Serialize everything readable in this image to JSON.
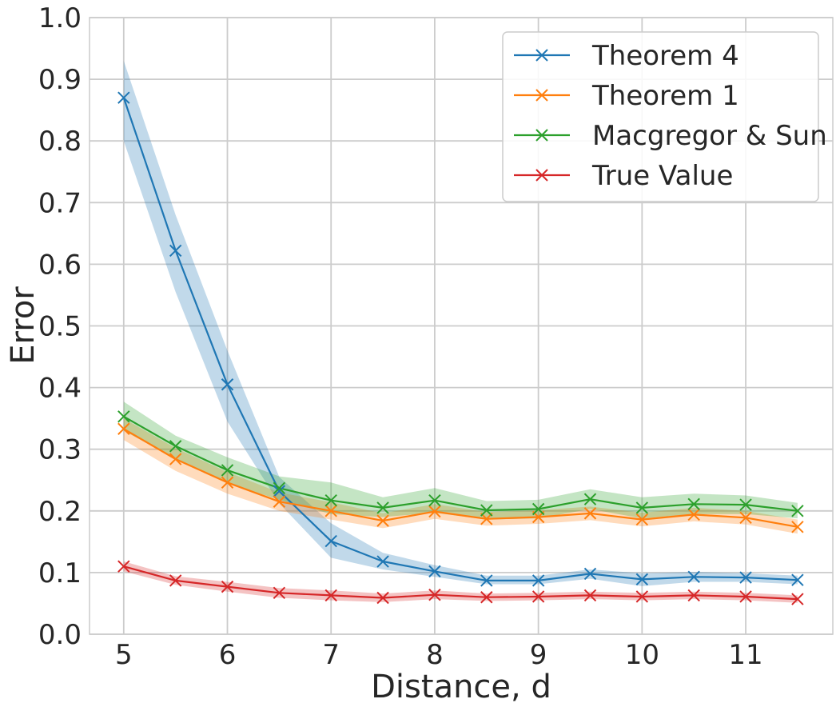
{
  "chart_data": {
    "type": "line",
    "title": "",
    "xlabel": "Distance, d",
    "ylabel": "Error",
    "xlim": [
      4.67,
      11.84
    ],
    "ylim": [
      0.0,
      1.0
    ],
    "xticks": [
      5,
      6,
      7,
      8,
      9,
      10,
      11
    ],
    "xtick_labels": [
      "5",
      "6",
      "7",
      "8",
      "9",
      "10",
      "11"
    ],
    "yticks": [
      0.0,
      0.1,
      0.2,
      0.3,
      0.4,
      0.5,
      0.6,
      0.7,
      0.8,
      0.9,
      1.0
    ],
    "ytick_labels": [
      "0.0",
      "0.1",
      "0.2",
      "0.3",
      "0.4",
      "0.5",
      "0.6",
      "0.7",
      "0.8",
      "0.9",
      "1.0"
    ],
    "grid": true,
    "legend_position": "top-right",
    "x": [
      5,
      5.5,
      6,
      6.5,
      7,
      7.5,
      8,
      8.5,
      9,
      9.5,
      10,
      10.5,
      11,
      11.5
    ],
    "series": [
      {
        "name": "Theorem 4",
        "color": "#1f77b4",
        "marker": "x",
        "values": [
          0.87,
          0.622,
          0.405,
          0.232,
          0.151,
          0.118,
          0.102,
          0.087,
          0.087,
          0.098,
          0.089,
          0.093,
          0.092,
          0.088
        ],
        "lower": [
          0.8,
          0.555,
          0.345,
          0.212,
          0.124,
          0.105,
          0.093,
          0.081,
          0.081,
          0.09,
          0.078,
          0.085,
          0.085,
          0.081
        ],
        "upper": [
          0.93,
          0.68,
          0.46,
          0.255,
          0.18,
          0.132,
          0.112,
          0.095,
          0.095,
          0.105,
          0.099,
          0.101,
          0.099,
          0.095
        ]
      },
      {
        "name": "Theorem 1",
        "color": "#ff7f0e",
        "marker": "x",
        "values": [
          0.333,
          0.284,
          0.246,
          0.215,
          0.2,
          0.184,
          0.199,
          0.187,
          0.19,
          0.196,
          0.186,
          0.194,
          0.189,
          0.174
        ],
        "lower": [
          0.315,
          0.265,
          0.228,
          0.2,
          0.186,
          0.172,
          0.187,
          0.176,
          0.179,
          0.185,
          0.175,
          0.183,
          0.178,
          0.163
        ],
        "upper": [
          0.35,
          0.302,
          0.263,
          0.23,
          0.214,
          0.196,
          0.211,
          0.198,
          0.201,
          0.207,
          0.197,
          0.205,
          0.2,
          0.186
        ]
      },
      {
        "name": "Macgregor & Sun",
        "color": "#2ca02c",
        "marker": "x",
        "values": [
          0.353,
          0.305,
          0.266,
          0.237,
          0.217,
          0.205,
          0.217,
          0.201,
          0.203,
          0.219,
          0.205,
          0.211,
          0.21,
          0.2
        ],
        "lower": [
          0.33,
          0.285,
          0.245,
          0.218,
          0.195,
          0.19,
          0.197,
          0.186,
          0.188,
          0.203,
          0.188,
          0.195,
          0.195,
          0.188
        ],
        "upper": [
          0.377,
          0.322,
          0.287,
          0.256,
          0.246,
          0.222,
          0.237,
          0.216,
          0.218,
          0.235,
          0.222,
          0.228,
          0.225,
          0.213
        ]
      },
      {
        "name": "True Value",
        "color": "#d62728",
        "marker": "x",
        "values": [
          0.11,
          0.087,
          0.077,
          0.067,
          0.063,
          0.059,
          0.064,
          0.06,
          0.061,
          0.063,
          0.061,
          0.063,
          0.061,
          0.057
        ],
        "lower": [
          0.102,
          0.08,
          0.069,
          0.059,
          0.055,
          0.052,
          0.057,
          0.054,
          0.055,
          0.057,
          0.055,
          0.057,
          0.055,
          0.051
        ],
        "upper": [
          0.118,
          0.094,
          0.085,
          0.075,
          0.071,
          0.066,
          0.071,
          0.066,
          0.067,
          0.069,
          0.067,
          0.069,
          0.067,
          0.063
        ]
      }
    ]
  }
}
